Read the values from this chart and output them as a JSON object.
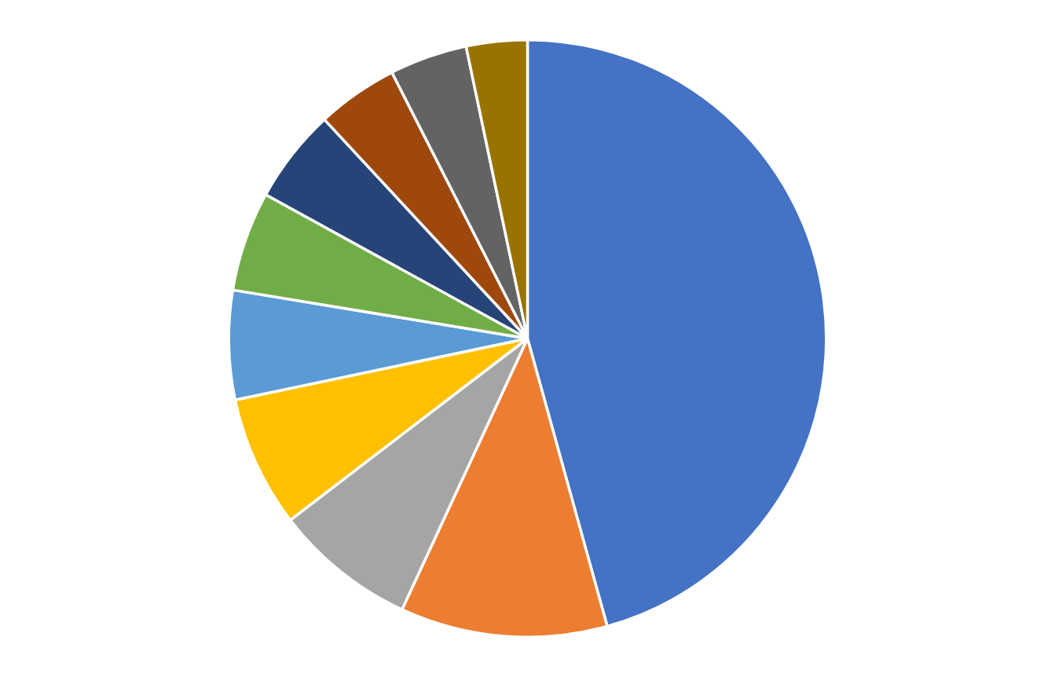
{
  "chart_data": {
    "type": "pie",
    "categories": [
      null,
      null,
      null,
      null,
      null,
      null,
      null,
      null,
      null,
      null
    ],
    "values": [
      45.7,
      11.2,
      7.7,
      7.1,
      5.9,
      5.4,
      5.1,
      4.4,
      4.2,
      3.3
    ],
    "colors": [
      "#4472c4",
      "#ed7d31",
      "#a5a5a5",
      "#ffc000",
      "#5b9bd5",
      "#70ad47",
      "#264478",
      "#9e480e",
      "#636363",
      "#997300"
    ]
  }
}
